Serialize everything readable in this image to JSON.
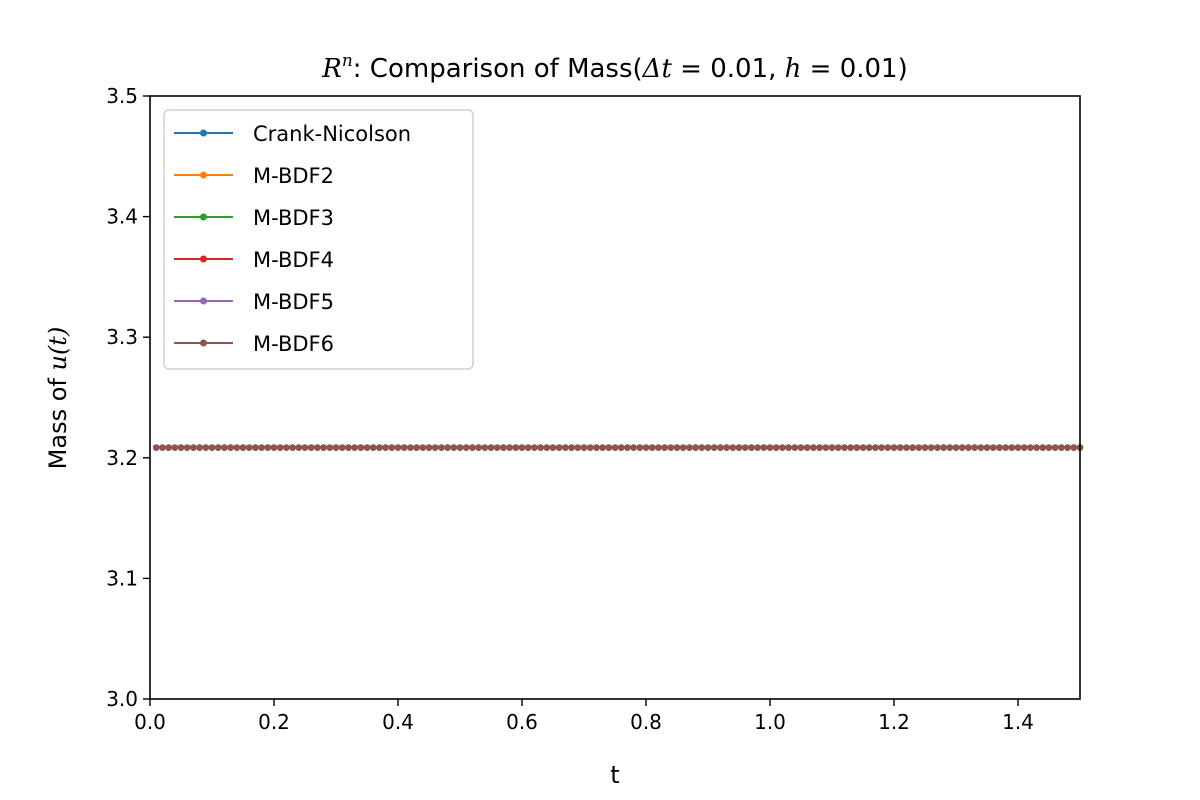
{
  "chart_data": {
    "type": "line",
    "title": {
      "prefix": "R",
      "superscript": "n",
      "text": ": Comparison of Mass(",
      "dt_symbol": "Δt",
      "eq1": " = 0.01, ",
      "h_symbol": "h",
      "eq2": " = 0.01)"
    },
    "xlabel": "t",
    "ylabel": {
      "text": "Mass of ",
      "math": "u(t)"
    },
    "xlim": [
      0.0,
      1.5
    ],
    "ylim": [
      3.0,
      3.5
    ],
    "xticks": [
      0.0,
      0.2,
      0.4,
      0.6,
      0.8,
      1.0,
      1.2,
      1.4
    ],
    "xtick_labels": [
      "0.0",
      "0.2",
      "0.4",
      "0.6",
      "0.8",
      "1.0",
      "1.2",
      "1.4"
    ],
    "yticks": [
      3.0,
      3.1,
      3.2,
      3.3,
      3.4,
      3.5
    ],
    "ytick_labels": [
      "3.0",
      "3.1",
      "3.2",
      "3.3",
      "3.4",
      "3.5"
    ],
    "x": {
      "start": 0.01,
      "end": 1.5,
      "step": 0.01
    },
    "grid": false,
    "legend_position": "upper left",
    "series": [
      {
        "name": "Crank-Nicolson",
        "color": "#1f77b4",
        "value": 3.2085
      },
      {
        "name": "M-BDF2",
        "color": "#ff7f0e",
        "value": 3.2085
      },
      {
        "name": "M-BDF3",
        "color": "#2ca02c",
        "value": 3.2085
      },
      {
        "name": "M-BDF4",
        "color": "#d62728",
        "value": 3.2085
      },
      {
        "name": "M-BDF5",
        "color": "#9467bd",
        "value": 3.2085
      },
      {
        "name": "M-BDF6",
        "color": "#8c564b",
        "value": 3.2085
      }
    ]
  }
}
